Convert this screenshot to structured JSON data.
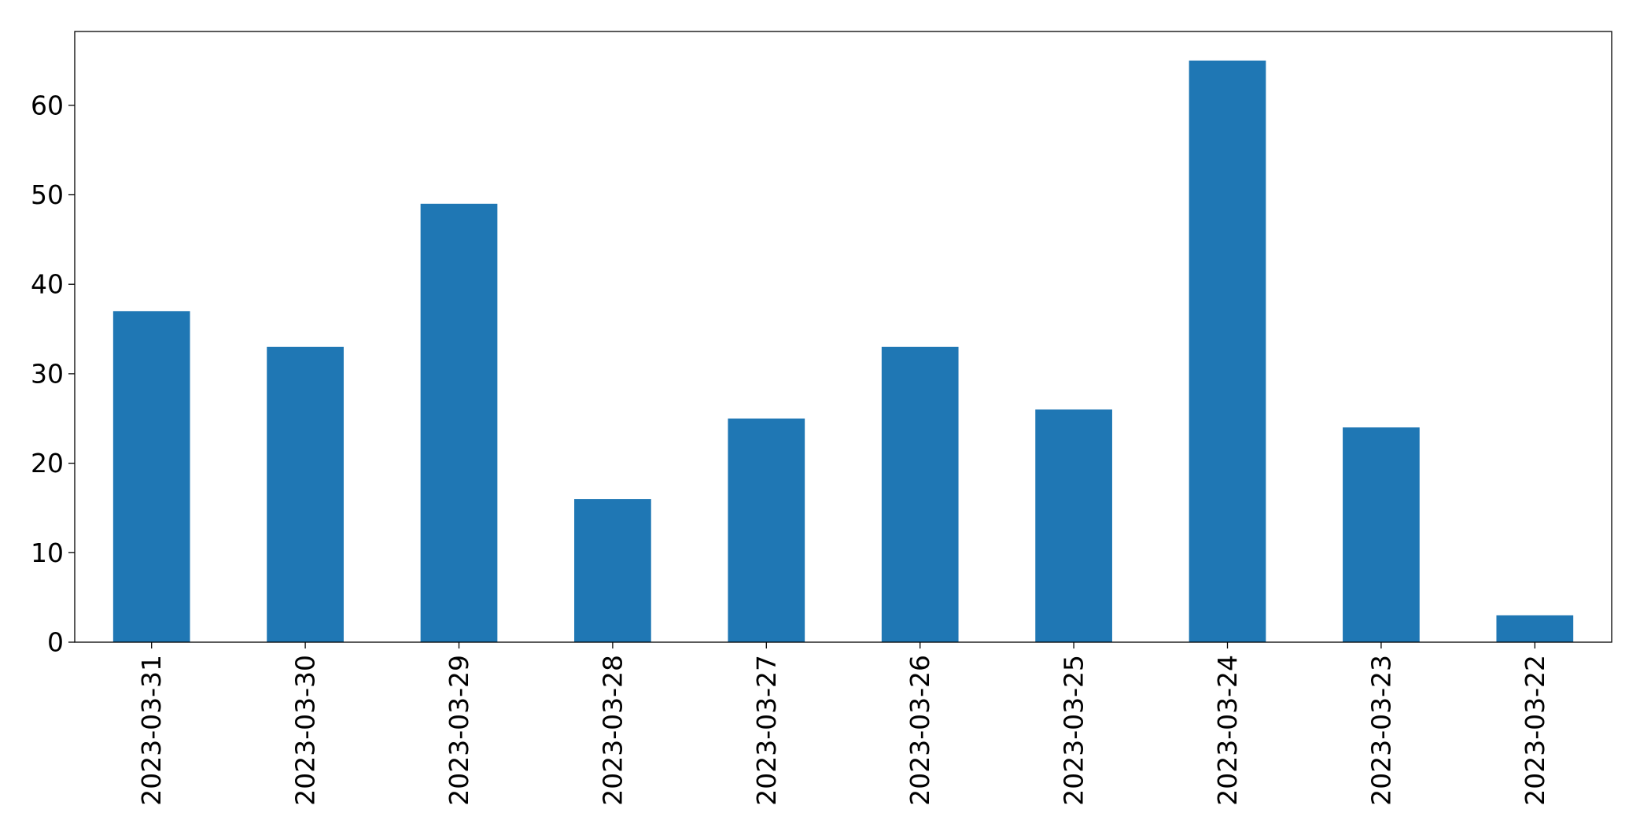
{
  "chart_data": {
    "type": "bar",
    "title": "",
    "xlabel": "",
    "ylabel": "",
    "categories": [
      "2023-03-31",
      "2023-03-30",
      "2023-03-29",
      "2023-03-28",
      "2023-03-27",
      "2023-03-26",
      "2023-03-25",
      "2023-03-24",
      "2023-03-23",
      "2023-03-22"
    ],
    "values": [
      37,
      33,
      49,
      16,
      25,
      33,
      26,
      65,
      24,
      3
    ],
    "ylim": [
      0,
      68.25
    ],
    "yticks": [
      0,
      10,
      20,
      30,
      40,
      50,
      60
    ],
    "grid": false,
    "legend": "none",
    "bar_color": "#1f77b4",
    "x_tick_rotation": "vertical"
  }
}
